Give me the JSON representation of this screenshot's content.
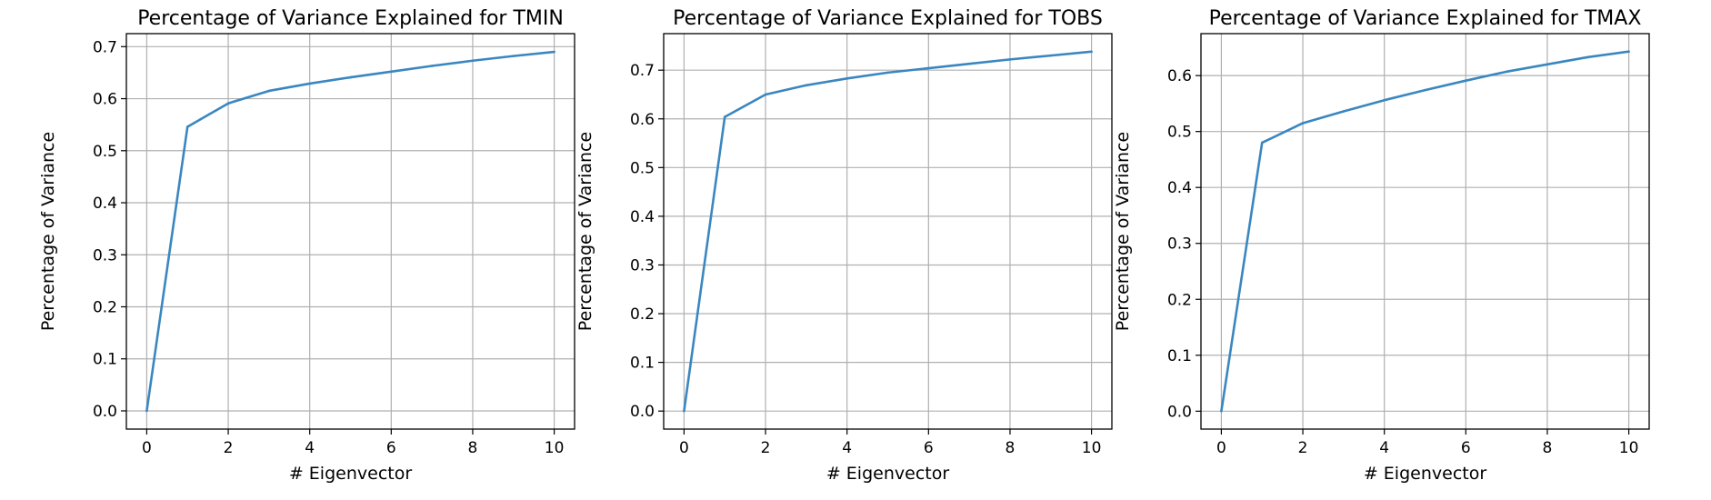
{
  "chart_data": [
    {
      "type": "line",
      "title": "Percentage of Variance Explained for TMIN",
      "xlabel": "# Eigenvector",
      "ylabel": "Percentage of Variance",
      "grid": true,
      "xlim": [
        -0.5,
        10.5
      ],
      "ylim": [
        -0.035,
        0.725
      ],
      "xticks": [
        "0",
        "2",
        "4",
        "6",
        "8",
        "10"
      ],
      "yticks": [
        "0.0",
        "0.1",
        "0.2",
        "0.3",
        "0.4",
        "0.5",
        "0.6",
        "0.7"
      ],
      "x": [
        0,
        1,
        2,
        3,
        4,
        5,
        6,
        7,
        8,
        9,
        10
      ],
      "series": [
        {
          "values": [
            0.0,
            0.546,
            0.591,
            0.615,
            0.629,
            0.641,
            0.652,
            0.663,
            0.673,
            0.682,
            0.69
          ],
          "color": "#3a87c0"
        }
      ]
    },
    {
      "type": "line",
      "title": "Percentage of Variance Explained for TOBS",
      "xlabel": "# Eigenvector",
      "ylabel": "Percentage of Variance",
      "grid": true,
      "xlim": [
        -0.5,
        10.5
      ],
      "ylim": [
        -0.037,
        0.775
      ],
      "xticks": [
        "0",
        "2",
        "4",
        "6",
        "8",
        "10"
      ],
      "yticks": [
        "0.0",
        "0.1",
        "0.2",
        "0.3",
        "0.4",
        "0.5",
        "0.6",
        "0.7"
      ],
      "x": [
        0,
        1,
        2,
        3,
        4,
        5,
        6,
        7,
        8,
        9,
        10
      ],
      "series": [
        {
          "values": [
            0.0,
            0.604,
            0.65,
            0.669,
            0.683,
            0.695,
            0.704,
            0.713,
            0.722,
            0.73,
            0.738
          ],
          "color": "#3a87c0"
        }
      ]
    },
    {
      "type": "line",
      "title": "Percentage of Variance Explained for TMAX",
      "xlabel": "# Eigenvector",
      "ylabel": "Percentage of Variance",
      "grid": true,
      "xlim": [
        -0.5,
        10.5
      ],
      "ylim": [
        -0.032,
        0.675
      ],
      "xticks": [
        "0",
        "2",
        "4",
        "6",
        "8",
        "10"
      ],
      "yticks": [
        "0.0",
        "0.1",
        "0.2",
        "0.3",
        "0.4",
        "0.5",
        "0.6"
      ],
      "x": [
        0,
        1,
        2,
        3,
        4,
        5,
        6,
        7,
        8,
        9,
        10
      ],
      "series": [
        {
          "values": [
            0.0,
            0.48,
            0.515,
            0.536,
            0.556,
            0.574,
            0.591,
            0.607,
            0.62,
            0.633,
            0.643
          ],
          "color": "#3a87c0"
        }
      ]
    }
  ]
}
